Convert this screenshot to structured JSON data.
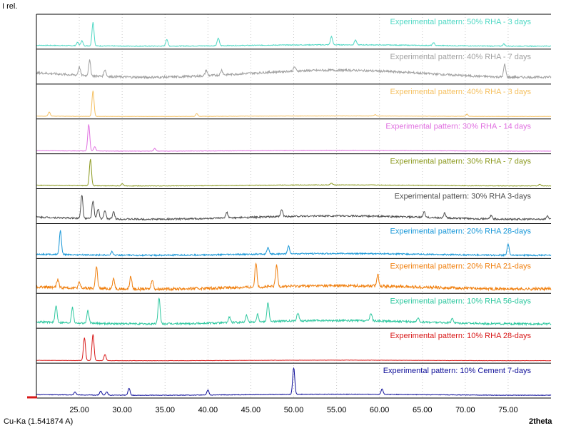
{
  "chart_data": {
    "type": "line",
    "title": "",
    "ylabel": "I rel.",
    "xlabel": "2theta",
    "radiation_label": "Cu-Ka (1.541874 A)",
    "xlim": [
      20.0,
      80.0
    ],
    "x_ticks": [
      25.0,
      30.0,
      35.0,
      40.0,
      45.0,
      50.0,
      55.0,
      60.0,
      65.0,
      70.0,
      75.0
    ],
    "x_tick_labels": [
      "25.00",
      "30.00",
      "35.00",
      "40.00",
      "45.00",
      "50.00",
      "55.00",
      "60.00",
      "65.00",
      "70.00",
      "75.00"
    ],
    "grid": "vertical-dotted",
    "layout": "stacked-panels",
    "series": [
      {
        "name": "Experimental pattern: 50% RHA - 3 days",
        "color": "#4fd8c4",
        "baseline": 0.08,
        "noise": 0.03,
        "peaks": [
          [
            24.8,
            0.12
          ],
          [
            25.3,
            0.18
          ],
          [
            26.6,
            0.85
          ],
          [
            35.2,
            0.25
          ],
          [
            41.2,
            0.28
          ],
          [
            54.4,
            0.3
          ],
          [
            57.2,
            0.18
          ],
          [
            66.3,
            0.1
          ],
          [
            74.5,
            0.08
          ]
        ]
      },
      {
        "name": "Experimental pattern: 40% RHA - 7 days",
        "color": "#a0a0a0",
        "baseline": 0.42,
        "noise": 0.08,
        "peaks": [
          [
            25.0,
            0.3
          ],
          [
            26.2,
            0.55
          ],
          [
            28.0,
            0.25
          ],
          [
            39.8,
            0.2
          ],
          [
            41.6,
            0.18
          ],
          [
            50.1,
            0.15
          ],
          [
            74.6,
            0.45
          ]
        ]
      },
      {
        "name": "Experimental pattern: 40% RHA - 3 days",
        "color": "#f5c060",
        "baseline": 0.03,
        "noise": 0.01,
        "peaks": [
          [
            21.5,
            0.15
          ],
          [
            26.6,
            0.92
          ],
          [
            38.7,
            0.1
          ],
          [
            59.5,
            0.05
          ],
          [
            70.2,
            0.08
          ]
        ]
      },
      {
        "name": "Experimental pattern: 30% RHA - 14 days",
        "color": "#e070e0",
        "baseline": 0.05,
        "noise": 0.015,
        "peaks": [
          [
            26.1,
            0.95
          ],
          [
            26.8,
            0.15
          ],
          [
            33.8,
            0.1
          ]
        ]
      },
      {
        "name": "Experimental pattern: 30% RHA - 7 days",
        "color": "#8c9a20",
        "baseline": 0.06,
        "noise": 0.02,
        "peaks": [
          [
            26.3,
            0.95
          ],
          [
            30.0,
            0.08
          ],
          [
            54.4,
            0.06
          ],
          [
            78.7,
            0.06
          ]
        ]
      },
      {
        "name": "Experimental pattern: 30% RHA 3-days",
        "color": "#505050",
        "baseline": 0.2,
        "noise": 0.06,
        "peaks": [
          [
            25.3,
            0.85
          ],
          [
            26.6,
            0.65
          ],
          [
            27.2,
            0.35
          ],
          [
            28.0,
            0.3
          ],
          [
            29.0,
            0.25
          ],
          [
            42.2,
            0.2
          ],
          [
            48.6,
            0.25
          ],
          [
            65.2,
            0.2
          ],
          [
            67.6,
            0.18
          ],
          [
            73.0,
            0.12
          ],
          [
            79.6,
            0.1
          ]
        ]
      },
      {
        "name": "Experimental pattern: 20% RHA 28-days",
        "color": "#1a98d8",
        "baseline": 0.1,
        "noise": 0.05,
        "peaks": [
          [
            22.8,
            0.85
          ],
          [
            28.8,
            0.12
          ],
          [
            47.0,
            0.22
          ],
          [
            49.4,
            0.28
          ],
          [
            75.0,
            0.4
          ]
        ]
      },
      {
        "name": "Experimental pattern: 20% RHA 21-days",
        "color": "#f08010",
        "baseline": 0.2,
        "noise": 0.1,
        "peaks": [
          [
            22.5,
            0.3
          ],
          [
            25.0,
            0.2
          ],
          [
            27.0,
            0.8
          ],
          [
            29.0,
            0.35
          ],
          [
            31.0,
            0.45
          ],
          [
            33.5,
            0.35
          ],
          [
            45.6,
            0.9
          ],
          [
            48.0,
            0.75
          ],
          [
            59.8,
            0.42
          ]
        ]
      },
      {
        "name": "Experimental pattern: 10% RHA 56-days",
        "color": "#30c8a0",
        "baseline": 0.2,
        "noise": 0.07,
        "peaks": [
          [
            22.3,
            0.6
          ],
          [
            24.2,
            0.55
          ],
          [
            26.0,
            0.45
          ],
          [
            34.3,
            0.95
          ],
          [
            42.5,
            0.2
          ],
          [
            44.5,
            0.25
          ],
          [
            45.8,
            0.28
          ],
          [
            47.0,
            0.7
          ],
          [
            50.5,
            0.3
          ],
          [
            59.0,
            0.28
          ],
          [
            64.5,
            0.12
          ],
          [
            68.5,
            0.16
          ]
        ]
      },
      {
        "name": "Experimental pattern: 10% RHA 28-days",
        "color": "#d81818",
        "baseline": 0.03,
        "noise": 0.01,
        "peaks": [
          [
            25.6,
            0.82
          ],
          [
            26.6,
            0.95
          ],
          [
            28.0,
            0.22
          ]
        ]
      },
      {
        "name": "Experimental pattern: 10% Cement 7-days",
        "color": "#10109a",
        "baseline": 0.06,
        "noise": 0.02,
        "peaks": [
          [
            24.5,
            0.1
          ],
          [
            27.5,
            0.15
          ],
          [
            28.2,
            0.12
          ],
          [
            30.8,
            0.25
          ],
          [
            40.0,
            0.18
          ],
          [
            50.0,
            0.98
          ],
          [
            60.3,
            0.2
          ]
        ]
      }
    ]
  }
}
